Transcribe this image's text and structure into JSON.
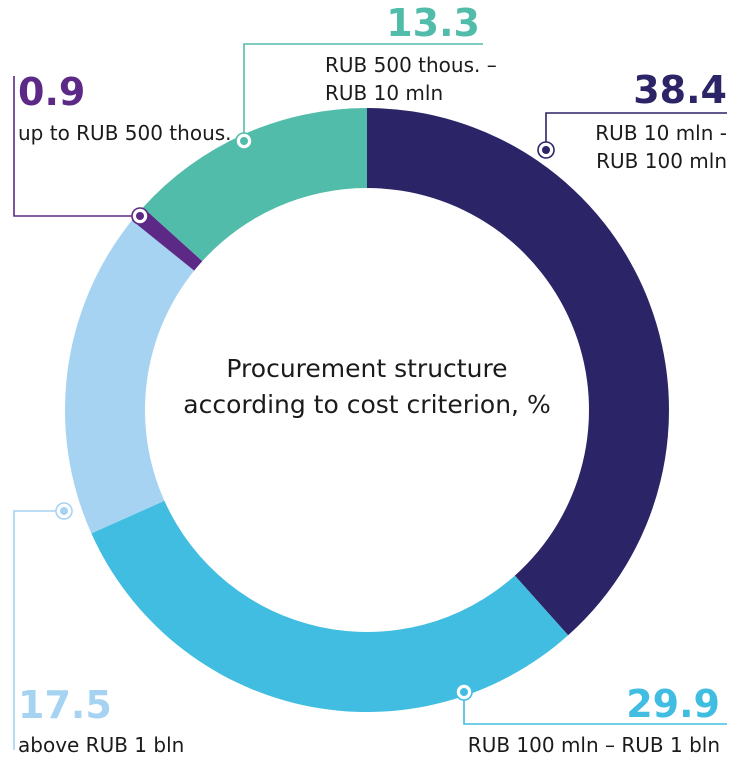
{
  "chart_data": {
    "type": "pie",
    "title": "Procurement structure according to cost criterion, %",
    "title_lines": [
      "Procurement structure",
      "according to cost criterion, %"
    ],
    "slices": [
      {
        "label": "RUB 10 mln - RUB 100 mln",
        "label_lines": [
          "RUB 10 mln -",
          "RUB 100 mln"
        ],
        "value": 38.4,
        "value_text": "38.4",
        "color": "#2b2467"
      },
      {
        "label": "RUB 100 mln – RUB 1 bln",
        "label_lines": [
          "RUB 100 mln – RUB 1 bln"
        ],
        "value": 29.9,
        "value_text": "29.9",
        "color": "#40bde0"
      },
      {
        "label": "above RUB 1 bln",
        "label_lines": [
          "above RUB 1 bln"
        ],
        "value": 17.5,
        "value_text": "17.5",
        "color": "#a6d3f2"
      },
      {
        "label": "up to RUB 500 thous.",
        "label_lines": [
          "up to RUB 500 thous."
        ],
        "value": 0.9,
        "value_text": "0.9",
        "color": "#5c2a86"
      },
      {
        "label": "RUB 500 thous. – RUB 10 mln",
        "label_lines": [
          "RUB 500 thous. –",
          "RUB 10 mln"
        ],
        "value": 13.3,
        "value_text": "13.3",
        "color": "#52bcaa"
      }
    ],
    "legend": "none"
  }
}
